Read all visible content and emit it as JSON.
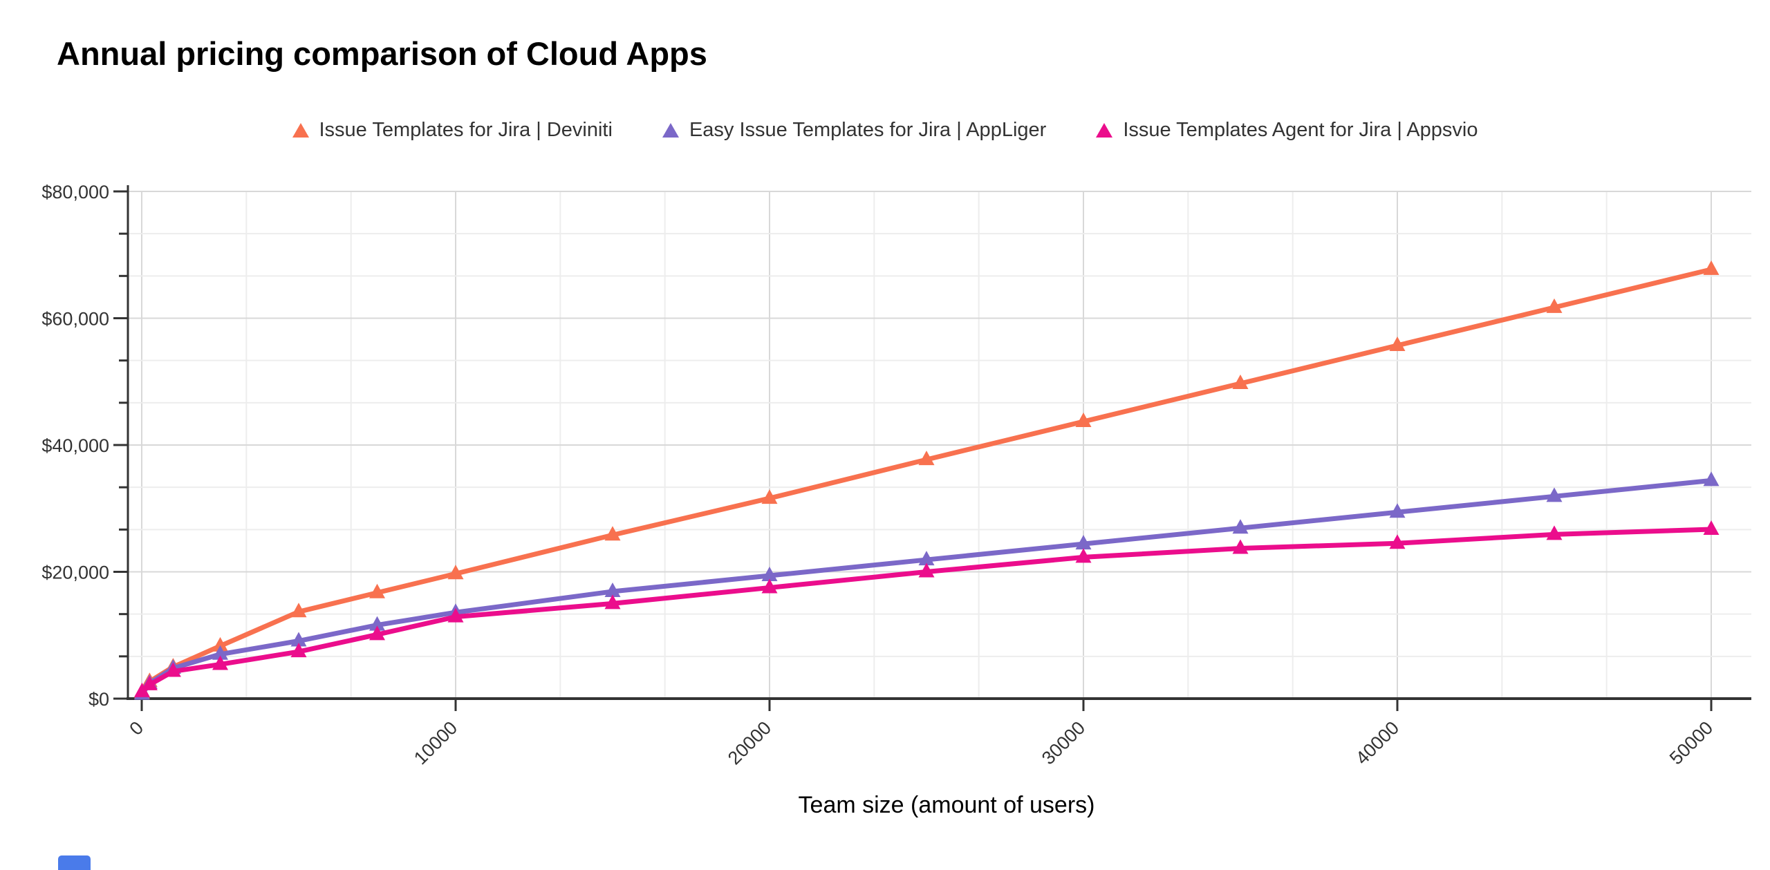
{
  "header": {
    "title": "Annual pricing comparison of Cloud Apps"
  },
  "legend": [
    {
      "label": "Issue Templates for Jira | Deviniti",
      "color": "#F8714F",
      "marker": "triangle-up-icon"
    },
    {
      "label": "Easy Issue Templates for Jira | AppLiger",
      "color": "#7B68C8",
      "marker": "triangle-up-icon"
    },
    {
      "label": "Issue Templates Agent for Jira | Appsvio",
      "color": "#EB0D8C",
      "marker": "triangle-up-icon"
    }
  ],
  "chart_data": {
    "type": "line",
    "title": "Annual pricing comparison of Cloud Apps",
    "xlabel": "Team size (amount of users)",
    "ylabel": "",
    "x": [
      10,
      250,
      1000,
      2500,
      5000,
      7500,
      10000,
      15000,
      20000,
      25000,
      30000,
      35000,
      40000,
      45000,
      50000
    ],
    "series": [
      {
        "name": "Issue Templates for Jira | Deviniti",
        "color": "#F8714F",
        "marker": "triangle",
        "values": [
          900,
          2700,
          5000,
          8300,
          13700,
          16700,
          19700,
          25800,
          31600,
          37700,
          43700,
          49700,
          55700,
          61700,
          67700
        ]
      },
      {
        "name": "Easy Issue Templates for Jira | AppLiger",
        "color": "#7B68C8",
        "marker": "triangle",
        "values": [
          700,
          2400,
          4800,
          7000,
          9100,
          11600,
          13600,
          16900,
          19400,
          21900,
          24400,
          26900,
          29400,
          31900,
          34400
        ]
      },
      {
        "name": "Issue Templates Agent for Jira | Appsvio",
        "color": "#EB0D8C",
        "marker": "triangle",
        "values": [
          1100,
          2200,
          4300,
          5400,
          7400,
          10100,
          12900,
          15000,
          17500,
          20000,
          22300,
          23700,
          24500,
          25900,
          26700
        ]
      }
    ],
    "xlim": [
      0,
      50000
    ],
    "ylim": [
      0,
      80000
    ],
    "x_tick_values": [
      0,
      10000,
      20000,
      30000,
      40000,
      50000
    ],
    "x_tick_labels": [
      "0",
      "10000",
      "20000",
      "30000",
      "40000",
      "50000"
    ],
    "x_tick_rotation": -45,
    "y_tick_values": [
      0,
      20000,
      40000,
      60000,
      80000
    ],
    "y_tick_labels": [
      "$0",
      "$20,000",
      "$40,000",
      "$60,000",
      "$80,000"
    ],
    "grid": {
      "on": true,
      "major_color": "#d8d8d8",
      "minor_color": "#ededed",
      "minor_divisions_per_major": 3
    },
    "axis_color": "#333333",
    "tick_label_color": "#333333",
    "legend_position": "top-center"
  },
  "misc": {
    "partial_blue_button_color": "#4A7BEA"
  }
}
